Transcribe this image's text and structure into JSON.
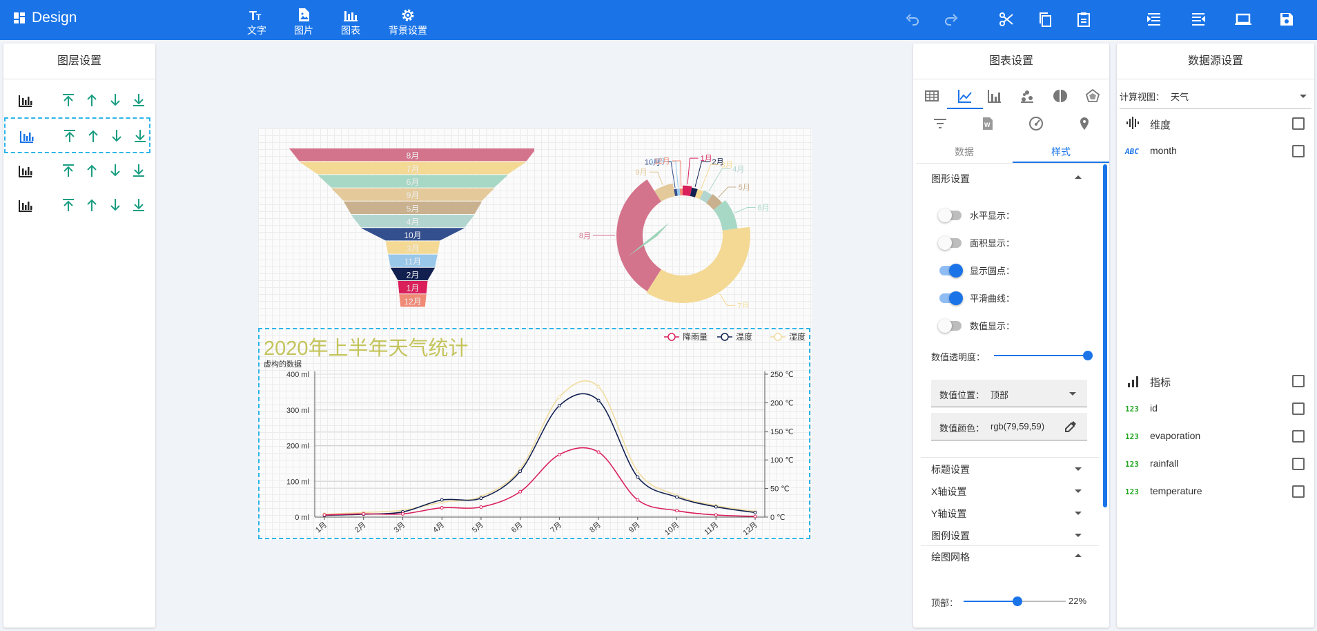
{
  "app": {
    "title": "Design"
  },
  "toolbar": {
    "tools": [
      {
        "label": "文字",
        "icon": "text-icon"
      },
      {
        "label": "图片",
        "icon": "image-icon"
      },
      {
        "label": "图表",
        "icon": "chart-icon"
      },
      {
        "label": "背景设置",
        "icon": "gear-icon"
      }
    ]
  },
  "layers_panel": {
    "title": "图层设置"
  },
  "chart_panel": {
    "title": "图表设置",
    "subtabs": [
      "数据",
      "样式"
    ],
    "active_subtab": "样式",
    "graphic_settings": {
      "title": "图形设置",
      "toggles": [
        {
          "label": "水平显示：",
          "on": false
        },
        {
          "label": "面积显示：",
          "on": false
        },
        {
          "label": "显示圆点：",
          "on": true
        },
        {
          "label": "平滑曲线：",
          "on": true
        },
        {
          "label": "数值显示：",
          "on": false
        }
      ],
      "opacity_label": "数值透明度：",
      "opacity_value": 1,
      "value_position_label": "数值位置：",
      "value_position": "顶部",
      "value_color_label": "数值颜色：",
      "value_color": "rgb(79,59,59)"
    },
    "sections": [
      "标题设置",
      "X轴设置",
      "Y轴设置",
      "图例设置"
    ],
    "grid_section": {
      "title": "绘图网格",
      "top_label": "顶部：",
      "top_value": "22%",
      "top_fraction": 0.22
    }
  },
  "datasource_panel": {
    "title": "数据源设置",
    "view_label": "计算视图：",
    "view_value": "天气",
    "dimension_title": "维度",
    "dimensions": [
      {
        "type": "ABC",
        "name": "month"
      }
    ],
    "measure_title": "指标",
    "measures": [
      {
        "type": "123",
        "name": "id"
      },
      {
        "type": "123",
        "name": "evaporation"
      },
      {
        "type": "123",
        "name": "rainfall"
      },
      {
        "type": "123",
        "name": "temperature"
      }
    ]
  },
  "colors": {
    "primary": "#1a74e8",
    "teal": "#1a9e82",
    "selection": "#2cb5e8"
  },
  "chart_data": [
    {
      "type": "funnel",
      "categories": [
        "8月",
        "7月",
        "6月",
        "9月",
        "5月",
        "4月",
        "10月",
        "3月",
        "11月",
        "2月",
        "1月",
        "12月"
      ],
      "values": [
        100,
        92,
        77,
        66,
        56,
        50,
        42,
        22,
        20,
        18,
        12,
        11
      ],
      "colors": [
        "#d4738c",
        "#f4d994",
        "#a7d8c5",
        "#e4c99a",
        "#c9b08e",
        "#b2d6cf",
        "#334f8d",
        "#f4d994",
        "#99c7ea",
        "#122050",
        "#d9205b",
        "#f08a76"
      ]
    },
    {
      "type": "pie",
      "variant": "donut-rose",
      "categories": [
        "1月",
        "2月",
        "3月",
        "4月",
        "5月",
        "6月",
        "7月",
        "8月",
        "9月",
        "10月",
        "11月",
        "12月"
      ],
      "values": [
        3,
        2,
        2,
        3,
        4,
        9,
        36,
        32,
        6,
        1,
        1,
        1
      ],
      "colors": [
        "#d9205b",
        "#122050",
        "#f4d994",
        "#b2d6cf",
        "#c9b08e",
        "#a7d8c5",
        "#f4d994",
        "#d4738c",
        "#e4c99a",
        "#334f8d",
        "#99c7ea",
        "#f08a76"
      ]
    },
    {
      "type": "line",
      "title": "2020年上半年天气统计",
      "ylabel": "虚构的数据",
      "categories": [
        "1月",
        "2月",
        "3月",
        "4月",
        "5月",
        "6月",
        "7月",
        "8月",
        "9月",
        "10月",
        "11月",
        "12月"
      ],
      "y_left": {
        "ticks": [
          "0 ml",
          "100 ml",
          "200 ml",
          "300 ml",
          "400 ml"
        ],
        "min": 0,
        "max": 400
      },
      "y_right": {
        "ticks": [
          "0 ℃",
          "50 ℃",
          "100 ℃",
          "150 ℃",
          "200 ℃",
          "250 ℃"
        ],
        "min": 0,
        "max": 250
      },
      "series": [
        {
          "name": "降雨量",
          "axis": "left",
          "color": "#d9205b",
          "values": [
            6,
            9,
            9,
            26,
            28,
            71,
            175,
            182,
            48,
            18,
            6,
            2
          ]
        },
        {
          "name": "温度",
          "axis": "right",
          "color": "#122050",
          "values": [
            3,
            5,
            9,
            30,
            33,
            80,
            195,
            204,
            70,
            35,
            18,
            8
          ]
        },
        {
          "name": "湿度",
          "axis": "right",
          "color": "#f0dca0",
          "values": [
            5,
            8,
            12,
            26,
            36,
            84,
            210,
            228,
            80,
            38,
            20,
            10
          ]
        }
      ],
      "legend": "top-right",
      "grid": true
    }
  ]
}
